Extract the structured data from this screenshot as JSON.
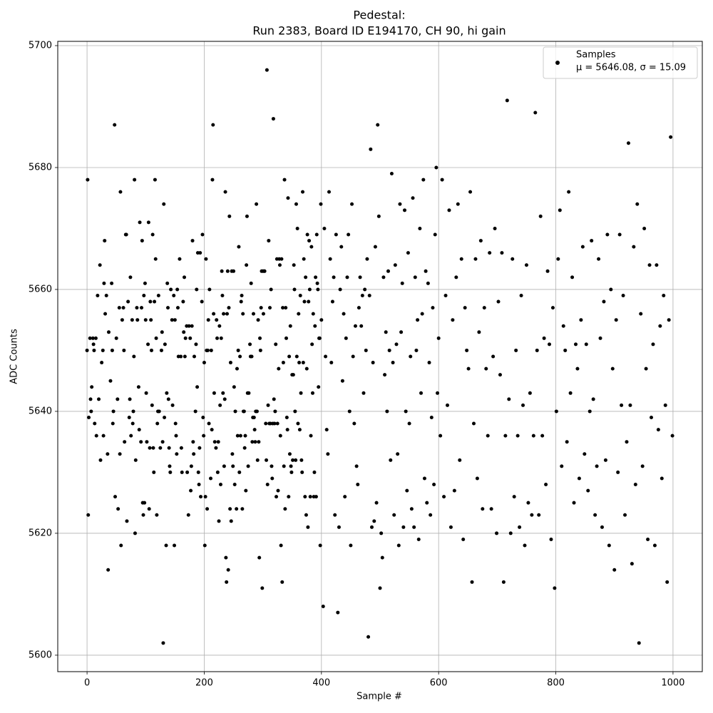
{
  "chart_data": {
    "type": "scatter",
    "title": "Pedestal:",
    "subtitle": "Run 2383, Board ID E194170, CH 90, hi gain",
    "x_label": "Sample #",
    "y_label": "ADC Counts",
    "legend_note": "μ = 5646.08, σ = 15.09",
    "legend_position": "upper right",
    "grid": true,
    "xlim": [
      -50,
      1050
    ],
    "ylim": [
      5597.3,
      5700.7
    ],
    "xticks": [
      0,
      200,
      400,
      600,
      800,
      1000
    ],
    "yticks": [
      5600,
      5620,
      5640,
      5660,
      5680,
      5700
    ],
    "x": [
      0,
      1,
      2,
      3,
      5,
      6,
      7,
      8,
      10,
      11,
      12,
      13,
      15,
      16,
      18,
      20,
      22,
      23,
      25,
      27,
      28,
      29,
      30,
      31,
      33,
      35,
      36,
      37,
      40,
      42,
      43,
      44,
      45,
      47,
      48,
      50,
      52,
      53,
      55,
      56,
      57,
      58,
      60,
      62,
      63,
      64,
      66,
      67,
      68,
      70,
      72,
      73,
      74,
      75,
      77,
      78,
      79,
      80,
      81,
      82,
      83,
      85,
      86,
      88,
      89,
      90,
      92,
      93,
      94,
      95,
      96,
      97,
      98,
      99,
      100,
      101,
      102,
      104,
      105,
      106,
      107,
      108,
      109,
      110,
      111,
      112,
      113,
      114,
      115,
      116,
      117,
      118,
      119,
      120,
      121,
      122,
      123,
      125,
      127,
      128,
      129,
      130,
      131,
      132,
      133,
      135,
      136,
      137,
      138,
      139,
      140,
      141,
      142,
      143,
      145,
      146,
      148,
      149,
      150,
      151,
      152,
      153,
      154,
      155,
      156,
      158,
      160,
      161,
      162,
      164,
      165,
      166,
      167,
      168,
      170,
      171,
      173,
      174,
      176,
      177,
      178,
      179,
      180,
      181,
      182,
      183,
      185,
      186,
      187,
      188,
      189,
      190,
      191,
      192,
      193,
      194,
      196,
      197,
      198,
      199,
      200,
      201,
      202,
      203,
      204,
      205,
      206,
      207,
      208,
      209,
      211,
      212,
      213,
      214,
      215,
      216,
      217,
      218,
      220,
      221,
      222,
      223,
      224,
      225,
      226,
      227,
      228,
      229,
      230,
      231,
      232,
      233,
      234,
      235,
      236,
      237,
      238,
      239,
      240,
      241,
      242,
      243,
      244,
      245,
      246,
      247,
      248,
      249,
      250,
      251,
      252,
      253,
      255,
      256,
      257,
      258,
      259,
      260,
      261,
      262,
      263,
      264,
      265,
      266,
      267,
      268,
      269,
      270,
      271,
      272,
      273,
      274,
      275,
      276,
      278,
      279,
      280,
      281,
      282,
      283,
      284,
      285,
      286,
      287,
      288,
      289,
      290,
      291,
      292,
      293,
      294,
      295,
      296,
      297,
      298,
      299,
      300,
      301,
      302,
      303,
      305,
      306,
      307,
      308,
      309,
      310,
      311,
      312,
      313,
      314,
      315,
      316,
      317,
      318,
      319,
      320,
      321,
      322,
      323,
      324,
      325,
      326,
      327,
      328,
      329,
      330,
      331,
      332,
      333,
      334,
      335,
      336,
      337,
      338,
      339,
      340,
      341,
      342,
      343,
      344,
      345,
      346,
      347,
      348,
      349,
      350,
      351,
      352,
      353,
      354,
      355,
      356,
      357,
      358,
      359,
      360,
      361,
      362,
      363,
      364,
      365,
      366,
      367,
      368,
      369,
      370,
      371,
      372,
      373,
      374,
      375,
      376,
      377,
      378,
      379,
      380,
      381,
      382,
      383,
      384,
      385,
      386,
      387,
      388,
      389,
      390,
      391,
      392,
      393,
      394,
      395,
      396,
      397,
      398,
      399,
      400,
      403,
      405,
      407,
      409,
      411,
      413,
      415,
      417,
      419,
      421,
      423,
      425,
      428,
      430,
      432,
      434,
      436,
      438,
      440,
      442,
      444,
      446,
      448,
      450,
      452,
      454,
      456,
      458,
      460,
      462,
      464,
      466,
      468,
      470,
      472,
      474,
      476,
      478,
      480,
      482,
      484,
      486,
      488,
      490,
      492,
      494,
      496,
      498,
      500,
      502,
      504,
      506,
      508,
      510,
      512,
      514,
      516,
      518,
      520,
      522,
      524,
      526,
      528,
      530,
      532,
      534,
      536,
      538,
      540,
      542,
      544,
      546,
      548,
      550,
      552,
      554,
      556,
      558,
      560,
      562,
      564,
      566,
      568,
      570,
      572,
      574,
      576,
      578,
      580,
      582,
      584,
      586,
      588,
      590,
      592,
      594,
      596,
      598,
      600,
      603,
      606,
      609,
      612,
      615,
      618,
      621,
      624,
      627,
      630,
      633,
      636,
      639,
      642,
      645,
      648,
      651,
      654,
      657,
      660,
      663,
      666,
      669,
      672,
      675,
      678,
      681,
      684,
      687,
      690,
      693,
      696,
      699,
      702,
      705,
      708,
      711,
      714,
      717,
      720,
      723,
      726,
      729,
      732,
      735,
      738,
      741,
      744,
      747,
      750,
      753,
      756,
      759,
      762,
      765,
      768,
      771,
      774,
      777,
      780,
      783,
      786,
      789,
      792,
      795,
      798,
      801,
      804,
      807,
      810,
      813,
      816,
      819,
      822,
      825,
      828,
      831,
      834,
      837,
      840,
      843,
      846,
      849,
      852,
      855,
      858,
      861,
      864,
      867,
      870,
      873,
      876,
      879,
      882,
      885,
      888,
      891,
      894,
      897,
      900,
      903,
      906,
      909,
      912,
      915,
      918,
      921,
      924,
      927,
      930,
      933,
      936,
      939,
      942,
      945,
      948,
      951,
      954,
      957,
      960,
      963,
      966,
      969,
      972,
      975,
      978,
      981,
      984,
      987,
      990,
      993,
      996,
      999
    ],
    "series": [
      {
        "name": "Samples",
        "color": "#000000",
        "values": [
          5650,
          5678,
          5623,
          5639,
          5652,
          5642,
          5640,
          5644,
          5652,
          5651,
          5650,
          5638,
          5652,
          5636,
          5659,
          5642,
          5664,
          5632,
          5648,
          5650,
          5636,
          5661,
          5668,
          5656,
          5659,
          5633,
          5614,
          5653,
          5645,
          5661,
          5650,
          5638,
          5640,
          5687,
          5626,
          5652,
          5642,
          5624,
          5657,
          5633,
          5676,
          5618,
          5655,
          5657,
          5650,
          5635,
          5669,
          5669,
          5622,
          5658,
          5639,
          5642,
          5662,
          5636,
          5655,
          5638,
          5640,
          5649,
          5678,
          5620,
          5632,
          5657,
          5655,
          5644,
          5637,
          5671,
          5635,
          5657,
          5668,
          5625,
          5623,
          5659,
          5625,
          5661,
          5655,
          5643,
          5635,
          5651,
          5671,
          5624,
          5634,
          5658,
          5655,
          5650,
          5641,
          5669,
          5634,
          5630,
          5658,
          5678,
          5665,
          5652,
          5623,
          5638,
          5640,
          5659,
          5640,
          5634,
          5650,
          5653,
          5635,
          5602,
          5674,
          5639,
          5651,
          5618,
          5643,
          5661,
          5657,
          5642,
          5634,
          5631,
          5630,
          5660,
          5655,
          5641,
          5659,
          5618,
          5655,
          5638,
          5636,
          5633,
          5660,
          5657,
          5649,
          5665,
          5649,
          5634,
          5630,
          5658,
          5653,
          5662,
          5649,
          5652,
          5654,
          5630,
          5623,
          5654,
          5652,
          5627,
          5631,
          5654,
          5668,
          5635,
          5633,
          5649,
          5640,
          5651,
          5660,
          5644,
          5666,
          5630,
          5628,
          5634,
          5666,
          5626,
          5658,
          5669,
          5639,
          5636,
          5648,
          5618,
          5626,
          5665,
          5650,
          5624,
          5650,
          5655,
          5638,
          5660,
          5629,
          5650,
          5637,
          5678,
          5687,
          5656,
          5643,
          5635,
          5634,
          5655,
          5652,
          5630,
          5635,
          5622,
          5654,
          5641,
          5628,
          5652,
          5663,
          5659,
          5643,
          5656,
          5631,
          5642,
          5676,
          5616,
          5612,
          5656,
          5663,
          5614,
          5657,
          5672,
          5624,
          5648,
          5622,
          5663,
          5633,
          5631,
          5663,
          5644,
          5628,
          5640,
          5624,
          5647,
          5636,
          5650,
          5667,
          5630,
          5649,
          5636,
          5658,
          5659,
          5624,
          5656,
          5640,
          5640,
          5634,
          5636,
          5627,
          5664,
          5672,
          5643,
          5631,
          5643,
          5651,
          5649,
          5661,
          5649,
          5635,
          5639,
          5656,
          5639,
          5637,
          5635,
          5640,
          5674,
          5640,
          5632,
          5655,
          5635,
          5616,
          5652,
          5650,
          5657,
          5663,
          5611,
          5663,
          5656,
          5663,
          5663,
          5638,
          5632,
          5696,
          5628,
          5641,
          5668,
          5638,
          5657,
          5638,
          5660,
          5631,
          5629,
          5638,
          5688,
          5642,
          5638,
          5640,
          5651,
          5626,
          5665,
          5638,
          5627,
          5647,
          5665,
          5664,
          5636,
          5618,
          5665,
          5612,
          5657,
          5648,
          5631,
          5678,
          5624,
          5657,
          5652,
          5639,
          5637,
          5675,
          5626,
          5649,
          5633,
          5654,
          5631,
          5630,
          5646,
          5632,
          5646,
          5664,
          5660,
          5640,
          5632,
          5674,
          5649,
          5670,
          5638,
          5656,
          5648,
          5637,
          5659,
          5643,
          5632,
          5630,
          5676,
          5648,
          5665,
          5658,
          5626,
          5662,
          5623,
          5647,
          5669,
          5621,
          5658,
          5668,
          5660,
          5626,
          5636,
          5667,
          5651,
          5643,
          5656,
          5626,
          5630,
          5654,
          5662,
          5626,
          5669,
          5661,
          5660,
          5644,
          5652,
          5652,
          5618,
          5674,
          5655,
          5608,
          5670,
          5649,
          5637,
          5633,
          5676,
          5665,
          5648,
          5658,
          5662,
          5623,
          5669,
          5607,
          5621,
          5660,
          5667,
          5645,
          5656,
          5626,
          5652,
          5662,
          5669,
          5640,
          5618,
          5674,
          5649,
          5638,
          5654,
          5631,
          5628,
          5657,
          5662,
          5654,
          5659,
          5643,
          5660,
          5650,
          5665,
          5603,
          5659,
          5683,
          5621,
          5648,
          5622,
          5667,
          5625,
          5687,
          5672,
          5611,
          5620,
          5616,
          5662,
          5646,
          5653,
          5640,
          5663,
          5650,
          5632,
          5679,
          5648,
          5623,
          5664,
          5651,
          5633,
          5618,
          5674,
          5653,
          5661,
          5621,
          5673,
          5640,
          5627,
          5666,
          5638,
          5649,
          5624,
          5675,
          5621,
          5662,
          5650,
          5655,
          5619,
          5670,
          5643,
          5656,
          5678,
          5629,
          5663,
          5625,
          5661,
          5648,
          5623,
          5639,
          5657,
          5628,
          5669,
          5680,
          5643,
          5652,
          5636,
          5678,
          5626,
          5659,
          5641,
          5673,
          5621,
          5655,
          5627,
          5662,
          5674,
          5632,
          5665,
          5619,
          5657,
          5650,
          5647,
          5676,
          5612,
          5638,
          5665,
          5629,
          5653,
          5668,
          5624,
          5657,
          5647,
          5636,
          5666,
          5624,
          5649,
          5670,
          5620,
          5658,
          5646,
          5666,
          5612,
          5636,
          5691,
          5642,
          5620,
          5665,
          5626,
          5650,
          5636,
          5621,
          5659,
          5641,
          5618,
          5664,
          5625,
          5643,
          5623,
          5636,
          5689,
          5650,
          5623,
          5672,
          5636,
          5652,
          5628,
          5663,
          5651,
          5619,
          5657,
          5611,
          5640,
          5665,
          5673,
          5631,
          5654,
          5650,
          5635,
          5676,
          5643,
          5662,
          5625,
          5651,
          5647,
          5629,
          5655,
          5667,
          5633,
          5651,
          5627,
          5640,
          5668,
          5642,
          5623,
          5631,
          5665,
          5652,
          5621,
          5658,
          5632,
          5669,
          5618,
          5660,
          5647,
          5614,
          5655,
          5630,
          5669,
          5641,
          5659,
          5623,
          5635,
          5684,
          5641,
          5615,
          5667,
          5628,
          5674,
          5602,
          5656,
          5631,
          5670,
          5647,
          5619,
          5664,
          5639,
          5651,
          5618,
          5664,
          5637,
          5654,
          5629,
          5659,
          5641,
          5612,
          5655,
          5685,
          5636
        ]
      }
    ]
  }
}
